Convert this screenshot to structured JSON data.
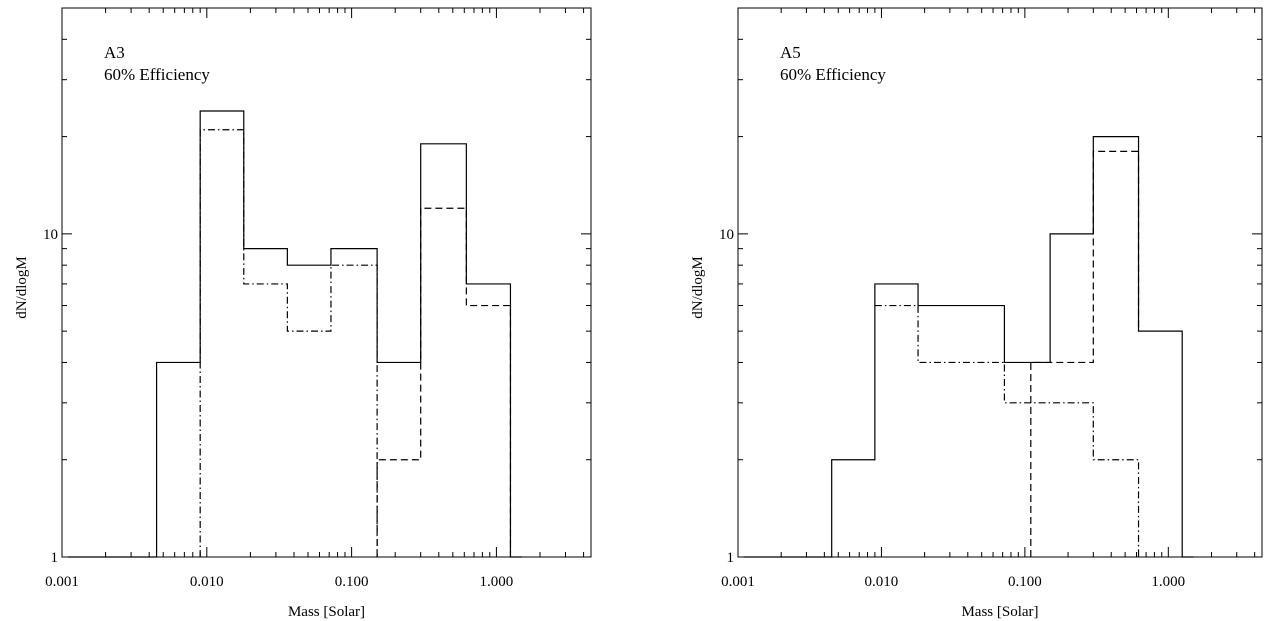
{
  "chart_data": [
    {
      "type": "histogram",
      "annotation_line1": "A3",
      "annotation_line2": "60% Efficiency",
      "xlabel": "Mass [Solar]",
      "ylabel": "dN/dlogM",
      "xscale": "log",
      "yscale": "log",
      "xlim": [
        0.001,
        4.5
      ],
      "ylim": [
        1,
        50
      ],
      "x_tick_labels": [
        "0.001",
        "0.010",
        "0.100",
        "1.000"
      ],
      "y_tick_labels": [
        "1",
        "10"
      ],
      "series": [
        {
          "style": "solid",
          "points": [
            [
              0.0011,
              1
            ],
            [
              0.0045,
              1
            ],
            [
              0.0045,
              4
            ],
            [
              0.009,
              4
            ],
            [
              0.009,
              24
            ],
            [
              0.018,
              24
            ],
            [
              0.018,
              9
            ],
            [
              0.036,
              9
            ],
            [
              0.036,
              8
            ],
            [
              0.072,
              8
            ],
            [
              0.072,
              9
            ],
            [
              0.15,
              9
            ],
            [
              0.15,
              4
            ],
            [
              0.3,
              4
            ],
            [
              0.3,
              19
            ],
            [
              0.62,
              19
            ],
            [
              0.62,
              7
            ],
            [
              1.25,
              7
            ],
            [
              1.25,
              1
            ],
            [
              1.5,
              1
            ]
          ]
        },
        {
          "style": "dash-dot",
          "points": [
            [
              0.009,
              1
            ],
            [
              0.009,
              21
            ],
            [
              0.018,
              21
            ],
            [
              0.018,
              7
            ],
            [
              0.036,
              7
            ],
            [
              0.036,
              5
            ],
            [
              0.072,
              5
            ],
            [
              0.072,
              8
            ],
            [
              0.15,
              8
            ],
            [
              0.15,
              1
            ]
          ]
        },
        {
          "style": "dashed",
          "points": [
            [
              0.15,
              1
            ],
            [
              0.15,
              2
            ],
            [
              0.3,
              2
            ],
            [
              0.3,
              12
            ],
            [
              0.62,
              12
            ],
            [
              0.62,
              6
            ],
            [
              1.25,
              6
            ],
            [
              1.25,
              1
            ]
          ]
        }
      ]
    },
    {
      "type": "histogram",
      "annotation_line1": "A5",
      "annotation_line2": "60% Efficiency",
      "xlabel": "Mass [Solar]",
      "ylabel": "dN/dlogM",
      "xscale": "log",
      "yscale": "log",
      "xlim": [
        0.001,
        4.5
      ],
      "ylim": [
        1,
        50
      ],
      "x_tick_labels": [
        "0.001",
        "0.010",
        "0.100",
        "1.000"
      ],
      "y_tick_labels": [
        "1",
        "10"
      ],
      "series": [
        {
          "style": "solid",
          "points": [
            [
              0.0011,
              1
            ],
            [
              0.0045,
              1
            ],
            [
              0.0045,
              2
            ],
            [
              0.009,
              2
            ],
            [
              0.009,
              7
            ],
            [
              0.018,
              7
            ],
            [
              0.018,
              6
            ],
            [
              0.072,
              6
            ],
            [
              0.072,
              4
            ],
            [
              0.15,
              4
            ],
            [
              0.15,
              10
            ],
            [
              0.3,
              10
            ],
            [
              0.3,
              20
            ],
            [
              0.62,
              20
            ],
            [
              0.62,
              5
            ],
            [
              1.25,
              5
            ],
            [
              1.25,
              1
            ],
            [
              1.5,
              1
            ]
          ]
        },
        {
          "style": "dash-dot",
          "points": [
            [
              0.009,
              6
            ],
            [
              0.018,
              6
            ],
            [
              0.018,
              4
            ],
            [
              0.072,
              4
            ],
            [
              0.072,
              3
            ],
            [
              0.3,
              3
            ],
            [
              0.3,
              2
            ],
            [
              0.62,
              2
            ],
            [
              0.62,
              1
            ]
          ]
        },
        {
          "style": "dashed",
          "points": [
            [
              0.11,
              1
            ],
            [
              0.11,
              4
            ],
            [
              0.3,
              4
            ],
            [
              0.3,
              18
            ],
            [
              0.62,
              18
            ],
            [
              0.62,
              5
            ]
          ]
        }
      ]
    }
  ]
}
